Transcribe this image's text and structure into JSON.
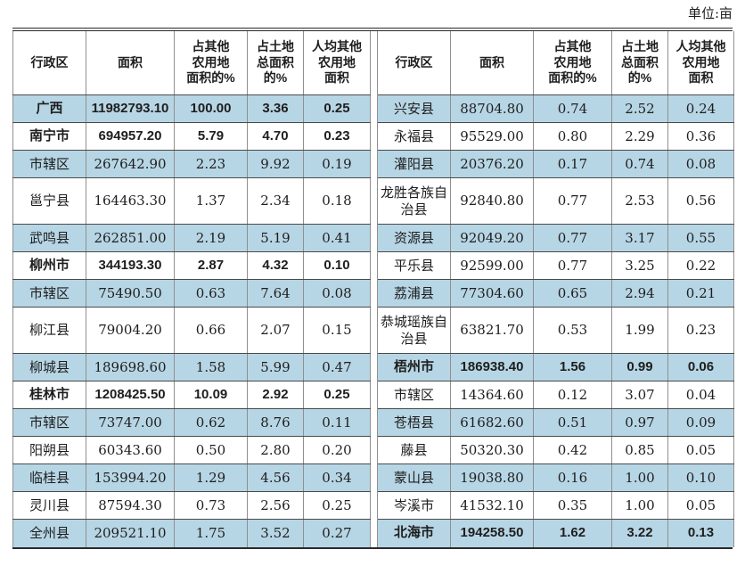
{
  "unit_label": "单位:亩",
  "columns": [
    "行政区",
    "面积",
    "占其他\n农用地\n面积的%",
    "占土地\n总面积\n的%",
    "人均其他\n农用地\n面积"
  ],
  "rows": [
    {
      "shaded": true,
      "tall": false,
      "left": {
        "name": "广西",
        "bold": true,
        "values": [
          "11982793.10",
          "100.00",
          "3.36",
          "0.25"
        ]
      },
      "right": {
        "name": "兴安县",
        "bold": false,
        "values": [
          "88704.80",
          "0.74",
          "2.52",
          "0.24"
        ]
      }
    },
    {
      "shaded": false,
      "tall": false,
      "left": {
        "name": "南宁市",
        "bold": true,
        "values": [
          "694957.20",
          "5.79",
          "4.70",
          "0.23"
        ]
      },
      "right": {
        "name": "永福县",
        "bold": false,
        "values": [
          "95529.00",
          "0.80",
          "2.29",
          "0.36"
        ]
      }
    },
    {
      "shaded": true,
      "tall": false,
      "left": {
        "name": "市辖区",
        "bold": false,
        "values": [
          "267642.90",
          "2.23",
          "9.92",
          "0.19"
        ]
      },
      "right": {
        "name": "灌阳县",
        "bold": false,
        "values": [
          "20376.20",
          "0.17",
          "0.74",
          "0.08"
        ]
      }
    },
    {
      "shaded": false,
      "tall": true,
      "left": {
        "name": "邕宁县",
        "bold": false,
        "values": [
          "164463.30",
          "1.37",
          "2.34",
          "0.18"
        ]
      },
      "right": {
        "name": "龙胜各族自治县",
        "bold": false,
        "values": [
          "92840.80",
          "0.77",
          "2.53",
          "0.56"
        ]
      }
    },
    {
      "shaded": true,
      "tall": false,
      "left": {
        "name": "武鸣县",
        "bold": false,
        "values": [
          "262851.00",
          "2.19",
          "5.19",
          "0.41"
        ]
      },
      "right": {
        "name": "资源县",
        "bold": false,
        "values": [
          "92049.20",
          "0.77",
          "3.17",
          "0.55"
        ]
      }
    },
    {
      "shaded": false,
      "tall": false,
      "left": {
        "name": "柳州市",
        "bold": true,
        "values": [
          "344193.30",
          "2.87",
          "4.32",
          "0.10"
        ]
      },
      "right": {
        "name": "平乐县",
        "bold": false,
        "values": [
          "92599.00",
          "0.77",
          "3.25",
          "0.22"
        ]
      }
    },
    {
      "shaded": true,
      "tall": false,
      "left": {
        "name": "市辖区",
        "bold": false,
        "values": [
          "75490.50",
          "0.63",
          "7.64",
          "0.08"
        ]
      },
      "right": {
        "name": "荔浦县",
        "bold": false,
        "values": [
          "77304.60",
          "0.65",
          "2.94",
          "0.21"
        ]
      }
    },
    {
      "shaded": false,
      "tall": true,
      "left": {
        "name": "柳江县",
        "bold": false,
        "values": [
          "79004.20",
          "0.66",
          "2.07",
          "0.15"
        ]
      },
      "right": {
        "name": "恭城瑶族自治县",
        "bold": false,
        "values": [
          "63821.70",
          "0.53",
          "1.99",
          "0.23"
        ]
      }
    },
    {
      "shaded": true,
      "tall": false,
      "left": {
        "name": "柳城县",
        "bold": false,
        "values": [
          "189698.60",
          "1.58",
          "5.99",
          "0.47"
        ]
      },
      "right": {
        "name": "梧州市",
        "bold": true,
        "values": [
          "186938.40",
          "1.56",
          "0.99",
          "0.06"
        ]
      }
    },
    {
      "shaded": false,
      "tall": false,
      "left": {
        "name": "桂林市",
        "bold": true,
        "values": [
          "1208425.50",
          "10.09",
          "2.92",
          "0.25"
        ]
      },
      "right": {
        "name": "市辖区",
        "bold": false,
        "values": [
          "14364.60",
          "0.12",
          "3.07",
          "0.04"
        ]
      }
    },
    {
      "shaded": true,
      "tall": false,
      "left": {
        "name": "市辖区",
        "bold": false,
        "values": [
          "73747.00",
          "0.62",
          "8.76",
          "0.11"
        ]
      },
      "right": {
        "name": "苍梧县",
        "bold": false,
        "values": [
          "61682.60",
          "0.51",
          "0.97",
          "0.09"
        ]
      }
    },
    {
      "shaded": false,
      "tall": false,
      "left": {
        "name": "阳朔县",
        "bold": false,
        "values": [
          "60343.60",
          "0.50",
          "2.80",
          "0.20"
        ]
      },
      "right": {
        "name": "藤县",
        "bold": false,
        "values": [
          "50320.30",
          "0.42",
          "0.85",
          "0.05"
        ]
      }
    },
    {
      "shaded": true,
      "tall": false,
      "left": {
        "name": "临桂县",
        "bold": false,
        "values": [
          "153994.20",
          "1.29",
          "4.56",
          "0.34"
        ]
      },
      "right": {
        "name": "蒙山县",
        "bold": false,
        "values": [
          "19038.80",
          "0.16",
          "1.00",
          "0.10"
        ]
      }
    },
    {
      "shaded": false,
      "tall": false,
      "left": {
        "name": "灵川县",
        "bold": false,
        "values": [
          "87594.30",
          "0.73",
          "2.56",
          "0.25"
        ]
      },
      "right": {
        "name": "岑溪市",
        "bold": false,
        "values": [
          "41532.10",
          "0.35",
          "1.00",
          "0.05"
        ]
      }
    },
    {
      "shaded": true,
      "tall": false,
      "left": {
        "name": "全州县",
        "bold": false,
        "values": [
          "209521.10",
          "1.75",
          "3.52",
          "0.27"
        ]
      },
      "right": {
        "name": "北海市",
        "bold": true,
        "values": [
          "194258.50",
          "1.62",
          "3.22",
          "0.13"
        ]
      }
    }
  ]
}
